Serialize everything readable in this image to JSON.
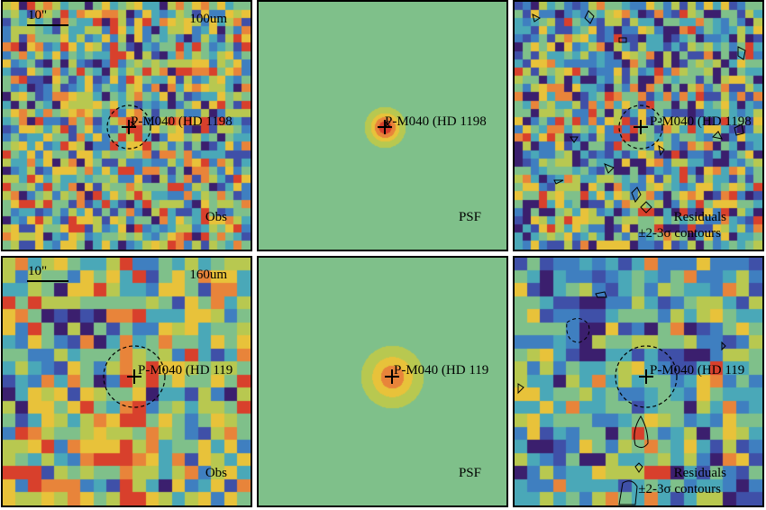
{
  "figure": {
    "rows": [
      {
        "band": "100um",
        "scale_label": "10\"",
        "panels": [
          {
            "kind": "obs",
            "label": "Obs",
            "source_label": "P-M040 (HD 1198"
          },
          {
            "kind": "psf",
            "label": "PSF",
            "source_label": "P-M040 (HD 1198"
          },
          {
            "kind": "res",
            "label": "Residuals",
            "contour_label": "±2-3σ contours",
            "source_label": "P-M040 (HD 1198"
          }
        ]
      },
      {
        "band": "160um",
        "scale_label": "10\"",
        "panels": [
          {
            "kind": "obs",
            "label": "Obs",
            "source_label": "P-M040 (HD 119"
          },
          {
            "kind": "psf",
            "label": "PSF",
            "source_label": "P-M040 (HD 119"
          },
          {
            "kind": "res",
            "label": "Residuals",
            "contour_label": "±2-3σ contours",
            "source_label": "P-M040 (HD 119"
          }
        ]
      }
    ],
    "colormap": [
      "#3b1f6e",
      "#3f50a8",
      "#3f7fc0",
      "#4aa8b8",
      "#7fc08a",
      "#b8c850",
      "#e8c23a",
      "#e8843a",
      "#d8402c"
    ],
    "marker_color": "#000000"
  }
}
